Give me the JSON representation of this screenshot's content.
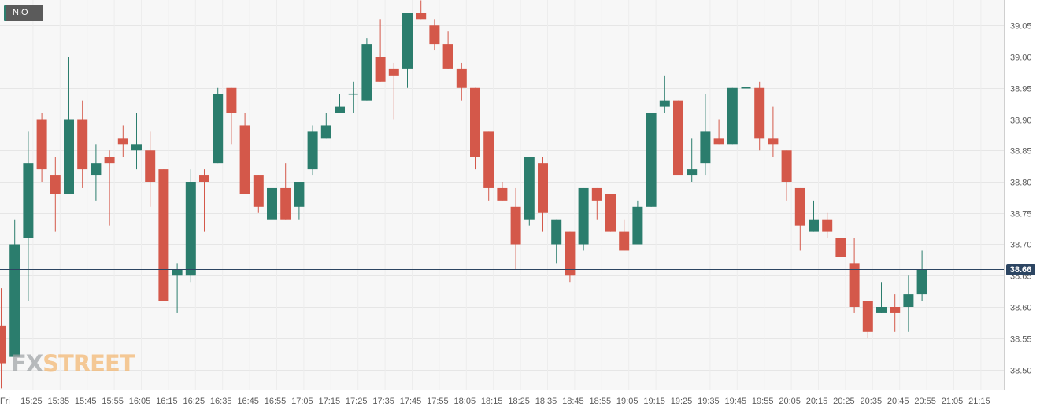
{
  "ticker": "NIO",
  "colors": {
    "up": "#2b7d6d",
    "down": "#d4584a",
    "last_price_line": "#2c4562",
    "grid": "#e6e6e6",
    "plot_bg": "#f7f7f7"
  },
  "watermark": {
    "part1": "FX",
    "part2": "STREET"
  },
  "chart_data": {
    "type": "candlestick",
    "title": "NIO",
    "interval_minutes": 5,
    "x_tick_labels": [
      "Fri",
      "15:25",
      "15:35",
      "15:45",
      "15:55",
      "16:05",
      "16:15",
      "16:25",
      "16:35",
      "16:45",
      "16:55",
      "17:05",
      "17:15",
      "17:25",
      "17:35",
      "17:45",
      "17:55",
      "18:05",
      "18:15",
      "18:25",
      "18:35",
      "18:45",
      "18:55",
      "19:05",
      "19:15",
      "19:25",
      "19:35",
      "19:45",
      "19:55",
      "20:05",
      "20:15",
      "20:25",
      "20:35",
      "20:45",
      "20:55",
      "21:05",
      "21:15"
    ],
    "y_tick_labels": [
      "39.05",
      "39.00",
      "38.95",
      "38.90",
      "38.85",
      "38.80",
      "38.75",
      "38.70",
      "38.65",
      "38.60",
      "38.55",
      "38.50"
    ],
    "y_axis_side": "right",
    "ylim": [
      38.47,
      39.093
    ],
    "grid": true,
    "last_price": 38.66,
    "last_price_text": "38.66",
    "candles": [
      {
        "t": "15:15",
        "o": 38.57,
        "h": 38.63,
        "l": 38.47,
        "c": 38.51
      },
      {
        "t": "15:20",
        "o": 38.52,
        "h": 38.74,
        "l": 38.52,
        "c": 38.7
      },
      {
        "t": "15:25",
        "o": 38.71,
        "h": 38.88,
        "l": 38.61,
        "c": 38.83
      },
      {
        "t": "15:30",
        "o": 38.9,
        "h": 38.91,
        "l": 38.8,
        "c": 38.82
      },
      {
        "t": "15:35",
        "o": 38.81,
        "h": 38.84,
        "l": 38.72,
        "c": 38.78
      },
      {
        "t": "15:40",
        "o": 38.78,
        "h": 39.0,
        "l": 38.78,
        "c": 38.9
      },
      {
        "t": "15:45",
        "o": 38.9,
        "h": 38.93,
        "l": 38.79,
        "c": 38.82
      },
      {
        "t": "15:50",
        "o": 38.81,
        "h": 38.86,
        "l": 38.77,
        "c": 38.83
      },
      {
        "t": "15:55",
        "o": 38.84,
        "h": 38.85,
        "l": 38.73,
        "c": 38.83
      },
      {
        "t": "16:00",
        "o": 38.87,
        "h": 38.89,
        "l": 38.84,
        "c": 38.86
      },
      {
        "t": "16:05",
        "o": 38.85,
        "h": 38.91,
        "l": 38.82,
        "c": 38.86
      },
      {
        "t": "16:10",
        "o": 38.85,
        "h": 38.88,
        "l": 38.76,
        "c": 38.8
      },
      {
        "t": "16:15",
        "o": 38.82,
        "h": 38.82,
        "l": 38.61,
        "c": 38.61
      },
      {
        "t": "16:20",
        "o": 38.65,
        "h": 38.67,
        "l": 38.59,
        "c": 38.66
      },
      {
        "t": "16:25",
        "o": 38.65,
        "h": 38.82,
        "l": 38.64,
        "c": 38.8
      },
      {
        "t": "16:30",
        "o": 38.81,
        "h": 38.82,
        "l": 38.72,
        "c": 38.8
      },
      {
        "t": "16:35",
        "o": 38.83,
        "h": 38.95,
        "l": 38.83,
        "c": 38.94
      },
      {
        "t": "16:40",
        "o": 38.95,
        "h": 38.95,
        "l": 38.86,
        "c": 38.91
      },
      {
        "t": "16:45",
        "o": 38.89,
        "h": 38.91,
        "l": 38.78,
        "c": 38.78
      },
      {
        "t": "16:50",
        "o": 38.81,
        "h": 38.81,
        "l": 38.75,
        "c": 38.76
      },
      {
        "t": "16:55",
        "o": 38.74,
        "h": 38.8,
        "l": 38.74,
        "c": 38.79
      },
      {
        "t": "17:00",
        "o": 38.79,
        "h": 38.83,
        "l": 38.74,
        "c": 38.74
      },
      {
        "t": "17:05",
        "o": 38.76,
        "h": 38.8,
        "l": 38.74,
        "c": 38.8
      },
      {
        "t": "17:10",
        "o": 38.82,
        "h": 38.89,
        "l": 38.81,
        "c": 38.88
      },
      {
        "t": "17:15",
        "o": 38.87,
        "h": 38.91,
        "l": 38.87,
        "c": 38.89
      },
      {
        "t": "17:20",
        "o": 38.91,
        "h": 38.94,
        "l": 38.91,
        "c": 38.92
      },
      {
        "t": "17:25",
        "o": 38.94,
        "h": 38.96,
        "l": 38.91,
        "c": 38.94
      },
      {
        "t": "17:30",
        "o": 38.93,
        "h": 39.03,
        "l": 38.93,
        "c": 39.02
      },
      {
        "t": "17:35",
        "o": 39.0,
        "h": 39.06,
        "l": 38.96,
        "c": 38.96
      },
      {
        "t": "17:40",
        "o": 38.98,
        "h": 38.99,
        "l": 38.9,
        "c": 38.97
      },
      {
        "t": "17:45",
        "o": 38.98,
        "h": 39.07,
        "l": 38.95,
        "c": 39.07
      },
      {
        "t": "17:50",
        "o": 39.07,
        "h": 39.09,
        "l": 39.06,
        "c": 39.06
      },
      {
        "t": "17:55",
        "o": 39.05,
        "h": 39.06,
        "l": 39.01,
        "c": 39.02
      },
      {
        "t": "18:00",
        "o": 39.02,
        "h": 39.04,
        "l": 38.98,
        "c": 38.98
      },
      {
        "t": "18:05",
        "o": 38.98,
        "h": 38.99,
        "l": 38.93,
        "c": 38.95
      },
      {
        "t": "18:10",
        "o": 38.95,
        "h": 38.95,
        "l": 38.82,
        "c": 38.84
      },
      {
        "t": "18:15",
        "o": 38.88,
        "h": 38.88,
        "l": 38.77,
        "c": 38.79
      },
      {
        "t": "18:20",
        "o": 38.79,
        "h": 38.8,
        "l": 38.77,
        "c": 38.77
      },
      {
        "t": "18:25",
        "o": 38.76,
        "h": 38.79,
        "l": 38.66,
        "c": 38.7
      },
      {
        "t": "18:30",
        "o": 38.74,
        "h": 38.84,
        "l": 38.73,
        "c": 38.84
      },
      {
        "t": "18:35",
        "o": 38.83,
        "h": 38.84,
        "l": 38.72,
        "c": 38.75
      },
      {
        "t": "18:40",
        "o": 38.7,
        "h": 38.74,
        "l": 38.67,
        "c": 38.74
      },
      {
        "t": "18:45",
        "o": 38.72,
        "h": 38.72,
        "l": 38.64,
        "c": 38.65
      },
      {
        "t": "18:50",
        "o": 38.7,
        "h": 38.79,
        "l": 38.69,
        "c": 38.79
      },
      {
        "t": "18:55",
        "o": 38.79,
        "h": 38.79,
        "l": 38.74,
        "c": 38.77
      },
      {
        "t": "19:00",
        "o": 38.78,
        "h": 38.78,
        "l": 38.72,
        "c": 38.72
      },
      {
        "t": "19:05",
        "o": 38.72,
        "h": 38.74,
        "l": 38.69,
        "c": 38.69
      },
      {
        "t": "19:10",
        "o": 38.7,
        "h": 38.77,
        "l": 38.7,
        "c": 38.76
      },
      {
        "t": "19:15",
        "o": 38.76,
        "h": 38.91,
        "l": 38.76,
        "c": 38.91
      },
      {
        "t": "19:20",
        "o": 38.92,
        "h": 38.97,
        "l": 38.91,
        "c": 38.93
      },
      {
        "t": "19:25",
        "o": 38.93,
        "h": 38.93,
        "l": 38.81,
        "c": 38.81
      },
      {
        "t": "19:30",
        "o": 38.81,
        "h": 38.87,
        "l": 38.8,
        "c": 38.82
      },
      {
        "t": "19:35",
        "o": 38.83,
        "h": 38.94,
        "l": 38.81,
        "c": 38.88
      },
      {
        "t": "19:40",
        "o": 38.87,
        "h": 38.9,
        "l": 38.86,
        "c": 38.86
      },
      {
        "t": "19:45",
        "o": 38.86,
        "h": 38.95,
        "l": 38.86,
        "c": 38.95
      },
      {
        "t": "19:50",
        "o": 38.95,
        "h": 38.97,
        "l": 38.92,
        "c": 38.95
      },
      {
        "t": "19:55",
        "o": 38.95,
        "h": 38.96,
        "l": 38.85,
        "c": 38.87
      },
      {
        "t": "20:00",
        "o": 38.87,
        "h": 38.92,
        "l": 38.84,
        "c": 38.86
      },
      {
        "t": "20:05",
        "o": 38.85,
        "h": 38.85,
        "l": 38.77,
        "c": 38.8
      },
      {
        "t": "20:10",
        "o": 38.79,
        "h": 38.79,
        "l": 38.69,
        "c": 38.73
      },
      {
        "t": "20:15",
        "o": 38.72,
        "h": 38.77,
        "l": 38.72,
        "c": 38.74
      },
      {
        "t": "20:20",
        "o": 38.74,
        "h": 38.75,
        "l": 38.71,
        "c": 38.72
      },
      {
        "t": "20:25",
        "o": 38.71,
        "h": 38.71,
        "l": 38.68,
        "c": 38.68
      },
      {
        "t": "20:30",
        "o": 38.67,
        "h": 38.71,
        "l": 38.59,
        "c": 38.6
      },
      {
        "t": "20:35",
        "o": 38.61,
        "h": 38.61,
        "l": 38.55,
        "c": 38.56
      },
      {
        "t": "20:40",
        "o": 38.59,
        "h": 38.64,
        "l": 38.59,
        "c": 38.6
      },
      {
        "t": "20:45",
        "o": 38.6,
        "h": 38.62,
        "l": 38.56,
        "c": 38.59
      },
      {
        "t": "20:50",
        "o": 38.6,
        "h": 38.65,
        "l": 38.56,
        "c": 38.62
      },
      {
        "t": "20:55",
        "o": 38.62,
        "h": 38.69,
        "l": 38.61,
        "c": 38.66
      }
    ]
  }
}
